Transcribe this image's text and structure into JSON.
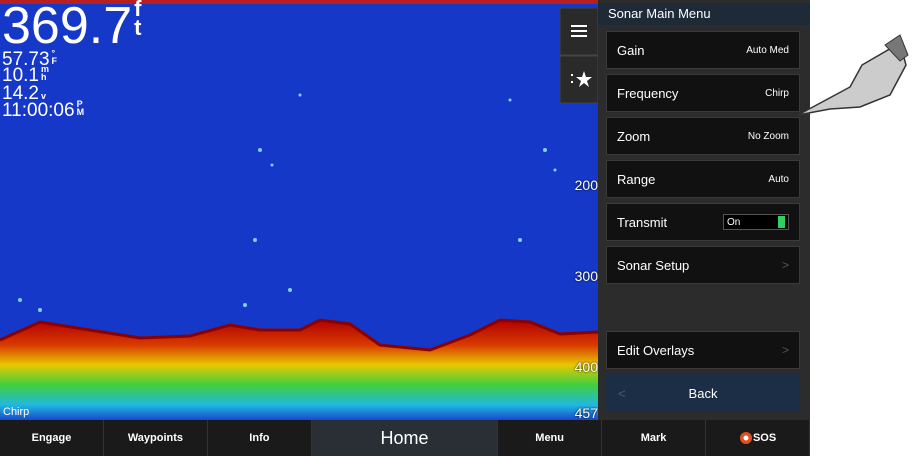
{
  "readouts": {
    "depth": {
      "value": "369.7",
      "unit": "ft"
    },
    "temperature": {
      "value": "57.73",
      "unit": "°F"
    },
    "speed": {
      "value": "10.1",
      "unit": "mh"
    },
    "voltage": {
      "value": "14.2",
      "unit": "v"
    },
    "time": {
      "value": "11:00:06",
      "unit": "PM"
    }
  },
  "depth_scale": [
    200,
    300,
    400,
    457
  ],
  "frequency_label": "Chirp",
  "menu": {
    "title": "Sonar Main Menu",
    "items": [
      {
        "label": "Gain",
        "value": "Auto Med"
      },
      {
        "label": "Frequency",
        "value": "Chirp"
      },
      {
        "label": "Zoom",
        "value": "No Zoom"
      },
      {
        "label": "Range",
        "value": "Auto"
      },
      {
        "label": "Transmit",
        "value": "On"
      },
      {
        "label": "Sonar Setup"
      },
      {
        "label": "Edit Overlays"
      }
    ],
    "back": "Back"
  },
  "bottom_bar": [
    "Engage",
    "Waypoints",
    "Info",
    "Home",
    "Menu",
    "Mark",
    "SOS"
  ]
}
